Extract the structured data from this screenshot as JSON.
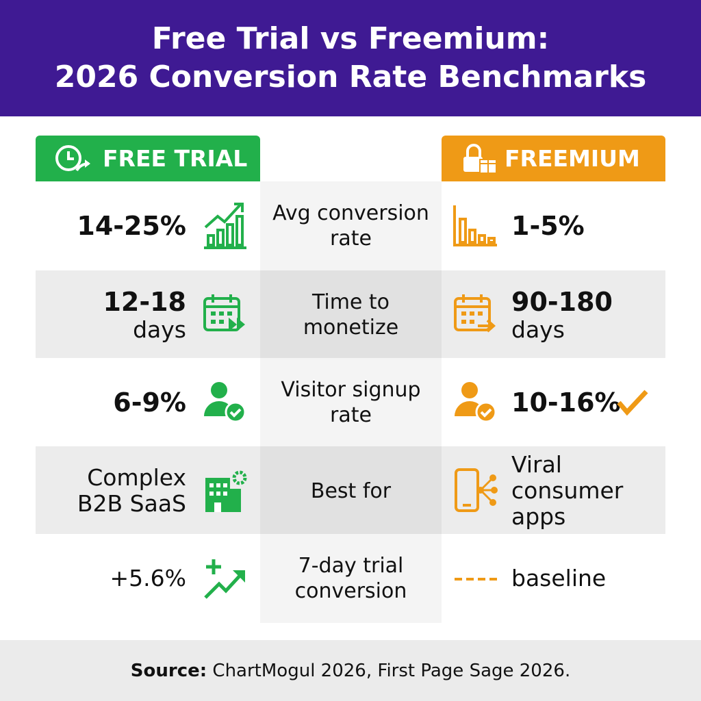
{
  "header": {
    "title_lines": [
      "Free Trial vs Freemium:",
      "2026 Conversion Rate Benchmarks"
    ]
  },
  "columns": {
    "left": "FREE TRIAL",
    "right": "FREEMIUM"
  },
  "rows": [
    {
      "left": [
        "14-25%"
      ],
      "metric": [
        "Avg conversion",
        "rate"
      ],
      "right": [
        "1-5%"
      ]
    },
    {
      "left": [
        "12-18",
        "days"
      ],
      "metric": [
        "Time to",
        "monetize"
      ],
      "right": [
        "90-180",
        "days"
      ]
    },
    {
      "left": [
        "6-9%"
      ],
      "metric": [
        "Visitor signup",
        "rate"
      ],
      "right": [
        "10-16%"
      ]
    },
    {
      "left": [
        "Complex",
        "B2B SaaS"
      ],
      "metric": [
        "Best for"
      ],
      "right": [
        "Viral",
        "consumer",
        "apps"
      ]
    },
    {
      "left": [
        "+5.6%"
      ],
      "metric": [
        "7-day trial",
        "conversion"
      ],
      "right": [
        "baseline"
      ]
    }
  ],
  "footer": {
    "label": "Source:",
    "text": "ChartMogul 2026, First Page Sage 2026."
  }
}
